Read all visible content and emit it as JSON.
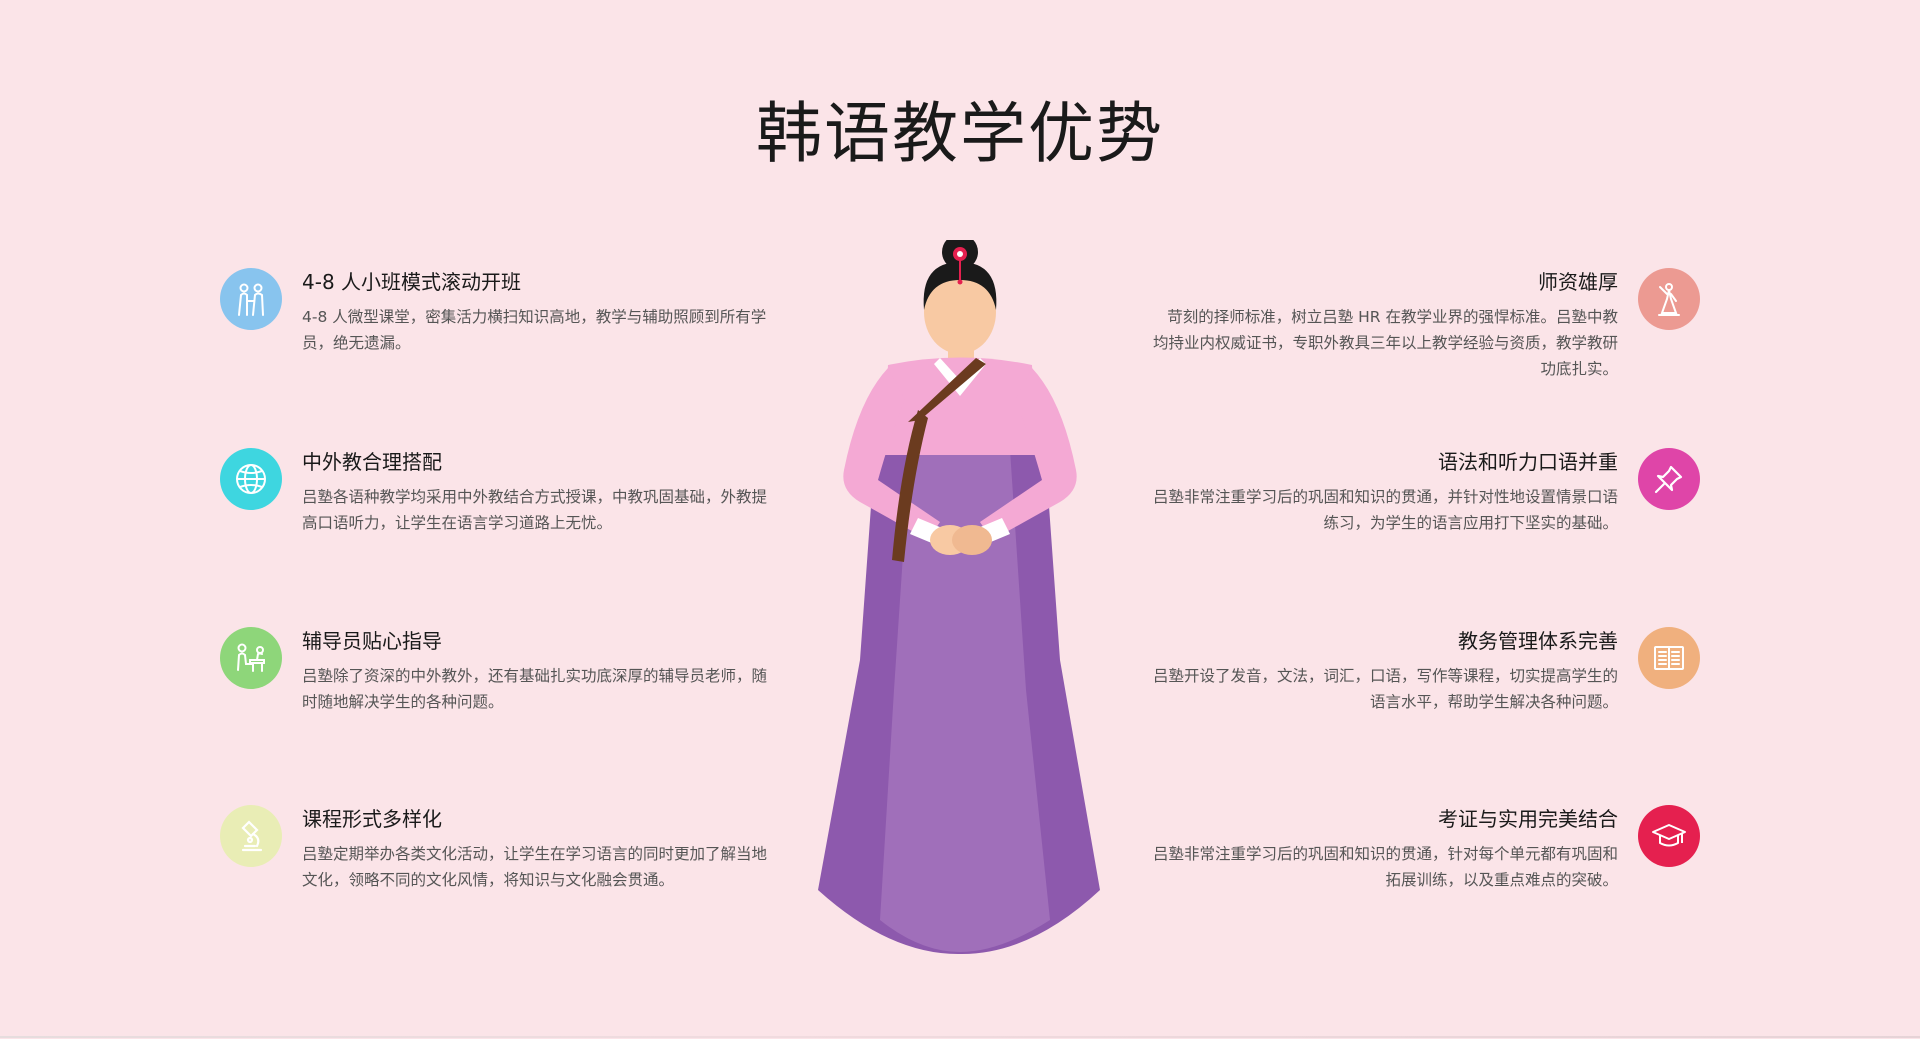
{
  "page": {
    "title": "韩语教学优势"
  },
  "colors": {
    "background": "#fbe4e8",
    "icon_small_class": "#88c4ee",
    "icon_teachers": "#ec9a92",
    "icon_native": "#3ed6e0",
    "icon_grammar": "#df45a8",
    "icon_tutor": "#8ed67a",
    "icon_management": "#f0b07e",
    "icon_course": "#e9edb5",
    "icon_certificate": "#e5204f",
    "hanbok_jacket": "#f4a9d4",
    "hanbok_skirt": "#8d59ad",
    "hanbok_skirt_light": "#a06fba"
  },
  "features_left": [
    {
      "icon": "people-icon",
      "title": "4-8 人小班模式滚动开班",
      "desc": "4-8 人微型课堂，密集活力横扫知识高地，教学与辅助照顾到所有学员，绝无遗漏。"
    },
    {
      "icon": "globe-icon",
      "title": "中外教合理搭配",
      "desc": "吕塾各语种教学均采用中外教结合方式授课，中教巩固基础，外教提高口语听力，让学生在语言学习道路上无忧。"
    },
    {
      "icon": "tutor-desk-icon",
      "title": "辅导员贴心指导",
      "desc": "吕塾除了资深的中外教外，还有基础扎实功底深厚的辅导员老师，随时随地解决学生的各种问题。"
    },
    {
      "icon": "microscope-icon",
      "title": "课程形式多样化",
      "desc": "吕塾定期举办各类文化活动，让学生在学习语言的同时更加了解当地文化，领略不同的文化风情，将知识与文化融会贯通。"
    }
  ],
  "features_right": [
    {
      "icon": "statue-icon",
      "title": "师资雄厚",
      "desc": "苛刻的择师标准，树立吕塾 HR 在教学业界的强悍标准。吕塾中教均持业内权威证书，专职外教具三年以上教学经验与资质，教学教研功底扎实。"
    },
    {
      "icon": "pushpin-icon",
      "title": "语法和听力口语并重",
      "desc": "吕塾非常注重学习后的巩固和知识的贯通，并针对性地设置情景口语练习，为学生的语言应用打下坚实的基础。"
    },
    {
      "icon": "open-book-icon",
      "title": "教务管理体系完善",
      "desc": "吕塾开设了发音，文法，词汇，口语，写作等课程，切实提高学生的语言水平，帮助学生解决各种问题。"
    },
    {
      "icon": "graduation-cap-icon",
      "title": "考证与实用完美结合",
      "desc": "吕塾非常注重学习后的巩固和知识的贯通，针对每个单元都有巩固和拓展训练，以及重点难点的突破。"
    }
  ]
}
